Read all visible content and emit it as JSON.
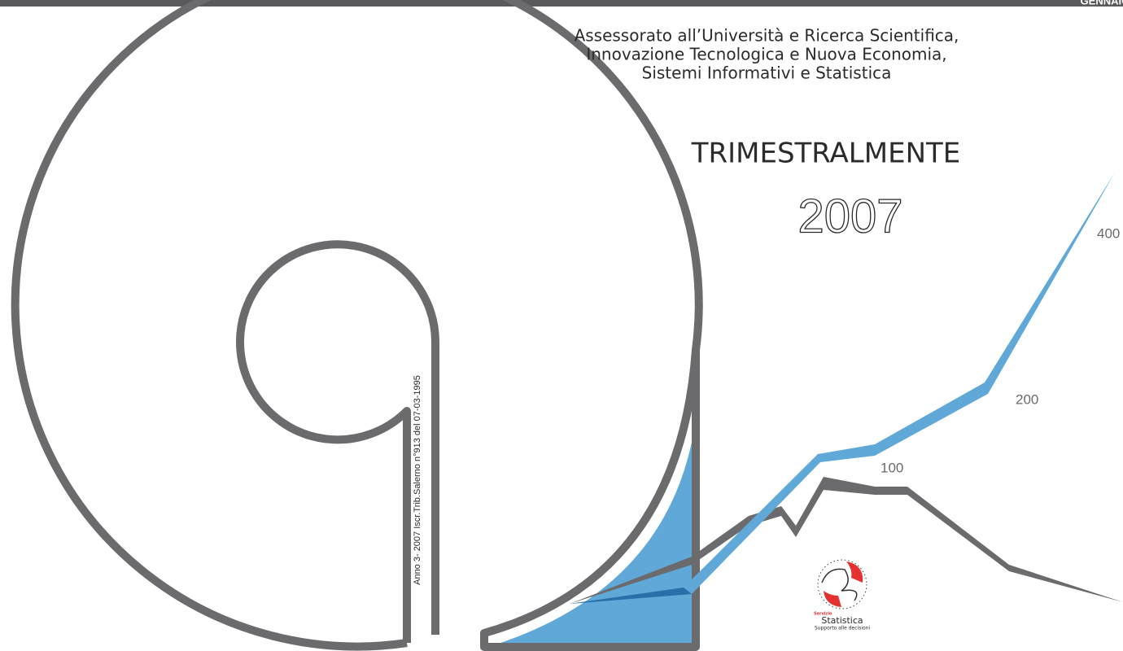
{
  "header": {
    "banner": "GENNAIO - MA"
  },
  "assessorato": [
    "Assessorato all’Università e Ricerca Scientifica,",
    "Innovazione Tecnologica e Nuova Economia,",
    "Sistemi Informativi e Statistica"
  ],
  "periodicity": "TRIMESTRALMENTE",
  "year": "2007",
  "registration": "Anno 3- 2007 Iscr.Trib.Salerno n°913 del 07-03-1995",
  "graph_labels": [
    "400",
    "200",
    "100"
  ],
  "logo": {
    "service": "Servizio",
    "name": "Statistica",
    "tagline": "Supporto alle decisioni"
  }
}
